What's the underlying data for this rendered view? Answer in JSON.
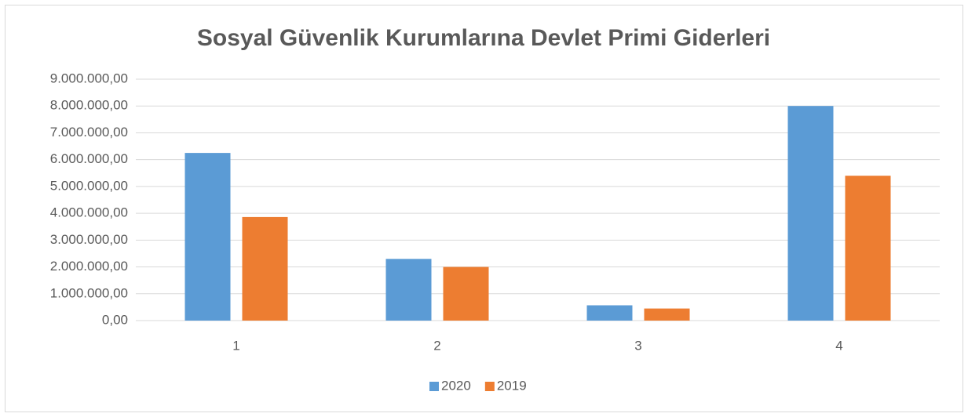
{
  "chart_data": {
    "type": "bar",
    "title": "Sosyal Güvenlik Kurumlarına Devlet Primi Giderleri",
    "categories": [
      "1",
      "2",
      "3",
      "4"
    ],
    "series": [
      {
        "name": "2020",
        "color": "#5b9bd5",
        "values": [
          6250000,
          2300000,
          570000,
          8000000
        ]
      },
      {
        "name": "2019",
        "color": "#ed7d31",
        "values": [
          3860000,
          2000000,
          450000,
          5400000
        ]
      }
    ],
    "ylim": [
      0,
      9000000
    ],
    "yticks": [
      {
        "value": 0,
        "label": "0,00"
      },
      {
        "value": 1000000,
        "label": "1.000.000,00"
      },
      {
        "value": 2000000,
        "label": "2.000.000,00"
      },
      {
        "value": 3000000,
        "label": "3.000.000,00"
      },
      {
        "value": 4000000,
        "label": "4.000.000,00"
      },
      {
        "value": 5000000,
        "label": "5.000.000,00"
      },
      {
        "value": 6000000,
        "label": "6.000.000,00"
      },
      {
        "value": 7000000,
        "label": "7.000.000,00"
      },
      {
        "value": 8000000,
        "label": "8.000.000,00"
      },
      {
        "value": 9000000,
        "label": "9.000.000,00"
      }
    ],
    "grid": true,
    "legend": "bottom"
  }
}
